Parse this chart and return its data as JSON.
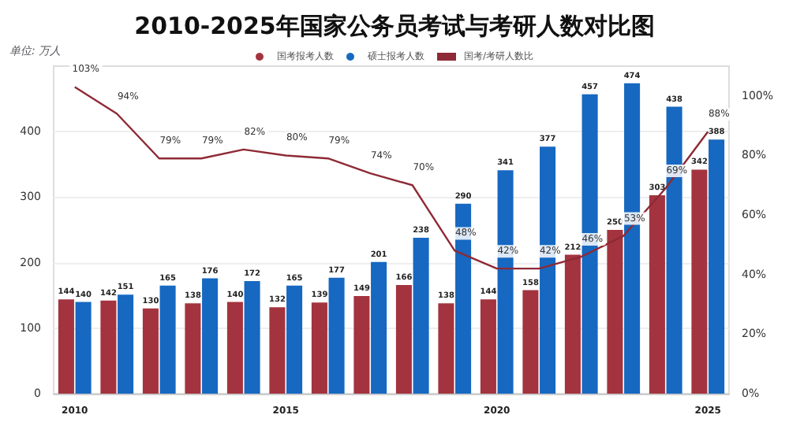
{
  "chart_data": {
    "type": "bar",
    "title": "2010-2025年国家公务员考试与考研人数对比图",
    "ylabel": "单位: 万人",
    "categories": [
      "2010",
      null,
      null,
      null,
      null,
      "2015",
      null,
      null,
      null,
      null,
      "2020",
      null,
      null,
      null,
      null,
      "2025"
    ],
    "series": [
      {
        "name": "国考报考人数",
        "color": "#a3343f",
        "values": [
          144,
          142,
          130,
          138,
          140,
          132,
          139,
          149,
          166,
          138,
          144,
          158,
          212,
          250,
          303,
          342
        ]
      },
      {
        "name": "硕士报考人数",
        "color": "#1668c1",
        "values": [
          140,
          151,
          165,
          176,
          172,
          165,
          177,
          201,
          238,
          290,
          341,
          377,
          457,
          474,
          438,
          388
        ]
      },
      {
        "name": "国考/考研人数比",
        "type": "line",
        "axis": "y2",
        "color": "#8e2a35",
        "values": [
          103,
          94,
          79,
          79,
          82,
          80,
          79,
          74,
          70,
          48,
          42,
          42,
          46,
          53,
          69,
          88
        ],
        "value_labels": [
          "103%",
          "94%",
          "79%",
          "79%",
          "82%",
          "80%",
          "79%",
          "74%",
          "70%",
          "48%",
          "42%",
          "42%",
          "46%",
          "53%",
          "69%",
          "88%"
        ]
      }
    ],
    "ylim": [
      0,
      500
    ],
    "yticks": [
      0,
      100,
      200,
      300,
      400
    ],
    "y2lim": [
      0,
      110
    ],
    "y2ticks": [
      {
        "value": 0,
        "label": "0%"
      },
      {
        "value": 20,
        "label": "20%"
      },
      {
        "value": 40,
        "label": "40%"
      },
      {
        "value": 60,
        "label": "60%"
      },
      {
        "value": 80,
        "label": "80%"
      },
      {
        "value": 100,
        "label": "100%"
      }
    ],
    "grid": "y",
    "legend": "top",
    "data_labels": true,
    "marker": "none"
  }
}
